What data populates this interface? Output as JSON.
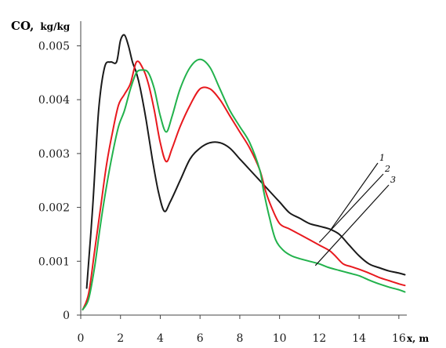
{
  "chart_data": {
    "type": "line",
    "title": "",
    "ylabel": "CO,",
    "ylabel_unit": "kg/kg",
    "xlabel": "x, m",
    "xlim": [
      0,
      16.4
    ],
    "ylim": [
      0,
      0.0054
    ],
    "grid": false,
    "x_ticks": [
      0,
      2,
      4,
      6,
      8,
      10,
      12,
      14,
      16
    ],
    "x_tick_labels": [
      "0",
      "2",
      "4",
      "6",
      "8",
      "10",
      "12",
      "14",
      "16"
    ],
    "y_ticks": [
      0,
      0.001,
      0.002,
      0.003,
      0.004,
      0.005
    ],
    "y_tick_labels": [
      "0",
      "0.001",
      "0.002",
      "0.003",
      "0.004",
      "0.005"
    ],
    "series": [
      {
        "name": "1",
        "color": "#1a1a1a",
        "label_anchor": [
          12.6,
          0.0016
        ],
        "x": [
          0.3,
          0.6,
          0.9,
          1.2,
          1.5,
          1.8,
          2.0,
          2.2,
          2.4,
          2.6,
          2.8,
          3.0,
          3.3,
          3.6,
          3.9,
          4.2,
          4.5,
          5.0,
          5.5,
          6.0,
          6.5,
          7.0,
          7.5,
          8.0,
          8.5,
          9.0,
          9.5,
          10.0,
          10.5,
          11.0,
          11.5,
          12.0,
          12.5,
          13.0,
          13.5,
          14.0,
          14.5,
          15.0,
          15.5,
          16.0,
          16.3
        ],
        "y": [
          0.0005,
          0.002,
          0.0038,
          0.0046,
          0.0047,
          0.0047,
          0.0051,
          0.0052,
          0.005,
          0.0047,
          0.0045,
          0.0042,
          0.0036,
          0.0029,
          0.0023,
          0.00193,
          0.0021,
          0.0025,
          0.0029,
          0.0031,
          0.0032,
          0.0032,
          0.0031,
          0.0029,
          0.0027,
          0.0025,
          0.0023,
          0.0021,
          0.0019,
          0.0018,
          0.0017,
          0.00165,
          0.0016,
          0.0015,
          0.0013,
          0.0011,
          0.00095,
          0.00088,
          0.00082,
          0.00078,
          0.00075
        ]
      },
      {
        "name": "2",
        "color": "#e8191e",
        "label_anchor": [
          12.0,
          0.00135
        ],
        "x": [
          0.1,
          0.4,
          0.7,
          1.0,
          1.3,
          1.6,
          1.9,
          2.2,
          2.5,
          2.8,
          3.1,
          3.4,
          3.7,
          4.0,
          4.3,
          4.6,
          5.0,
          5.5,
          6.0,
          6.5,
          7.0,
          7.5,
          8.0,
          8.5,
          9.0,
          9.3,
          9.6,
          10.0,
          10.5,
          11.0,
          11.5,
          12.0,
          12.5,
          12.8,
          13.2,
          13.6,
          14.0,
          14.5,
          15.0,
          15.5,
          16.0,
          16.3
        ],
        "y": [
          0.0001,
          0.0004,
          0.0012,
          0.002,
          0.0028,
          0.0034,
          0.0039,
          0.0041,
          0.0043,
          0.0047,
          0.0046,
          0.0043,
          0.0038,
          0.0032,
          0.00285,
          0.0031,
          0.0035,
          0.0039,
          0.0042,
          0.0042,
          0.004,
          0.0037,
          0.0034,
          0.0031,
          0.0027,
          0.0023,
          0.002,
          0.0017,
          0.0016,
          0.0015,
          0.0014,
          0.0013,
          0.0012,
          0.0011,
          0.00095,
          0.0009,
          0.00085,
          0.00078,
          0.0007,
          0.00064,
          0.00058,
          0.00055
        ]
      },
      {
        "name": "3",
        "color": "#22b24c",
        "label_anchor": [
          11.8,
          0.00092
        ],
        "x": [
          0.1,
          0.4,
          0.7,
          1.0,
          1.3,
          1.6,
          1.9,
          2.2,
          2.5,
          2.8,
          3.1,
          3.4,
          3.7,
          4.0,
          4.3,
          4.6,
          5.0,
          5.5,
          6.0,
          6.5,
          7.0,
          7.5,
          8.0,
          8.5,
          9.0,
          9.2,
          9.5,
          9.8,
          10.2,
          10.6,
          11.0,
          11.5,
          12.0,
          12.5,
          13.0,
          13.5,
          14.0,
          14.5,
          15.0,
          15.5,
          16.0,
          16.3
        ],
        "y": [
          0.0001,
          0.0003,
          0.0009,
          0.0017,
          0.0024,
          0.003,
          0.0035,
          0.0038,
          0.0042,
          0.0045,
          0.00455,
          0.0045,
          0.0042,
          0.0037,
          0.0034,
          0.0037,
          0.0042,
          0.0046,
          0.00475,
          0.0046,
          0.0042,
          0.0038,
          0.0035,
          0.0032,
          0.0027,
          0.0023,
          0.0018,
          0.0014,
          0.0012,
          0.0011,
          0.00105,
          0.001,
          0.00095,
          0.00088,
          0.00083,
          0.00078,
          0.00073,
          0.00065,
          0.00058,
          0.00052,
          0.00047,
          0.00043
        ]
      }
    ]
  }
}
